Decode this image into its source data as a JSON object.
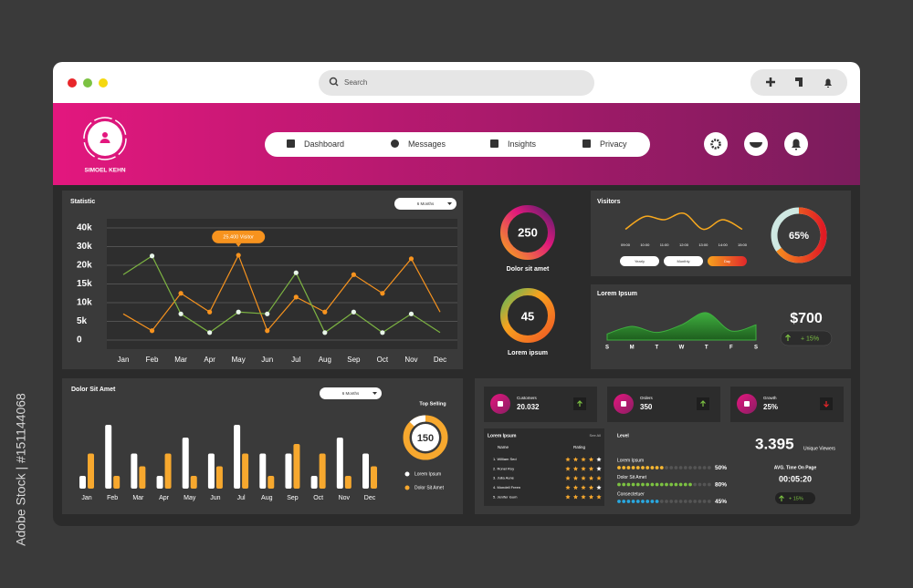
{
  "watermark": "Adobe Stock | #151144068",
  "browser": {
    "search": "Search"
  },
  "header": {
    "user": "SIMOEL KEHN",
    "nav": [
      "Dashboard",
      "Messages",
      "Insights",
      "Privacy"
    ]
  },
  "statistic": {
    "title": "Statistic",
    "filter": "6 Months",
    "tooltip": "25.400 Visitor",
    "categories": [
      "Jan",
      "Feb",
      "Mar",
      "Apr",
      "May",
      "Jun",
      "Jul",
      "Aug",
      "Sep",
      "Oct",
      "Nov",
      "Dec"
    ],
    "ylim": [
      0,
      40000
    ],
    "yticks": [
      {
        "value": 0,
        "label": "0"
      },
      {
        "value": 5000,
        "label": "5k"
      },
      {
        "value": 10000,
        "label": "10k"
      },
      {
        "value": 15000,
        "label": "15k"
      },
      {
        "value": 20000,
        "label": "20k"
      },
      {
        "value": 30000,
        "label": "30k"
      },
      {
        "value": 40000,
        "label": "40k"
      }
    ],
    "grid": true,
    "series": [
      {
        "color": "#f7931e",
        "marker_color": "#f7931e",
        "values": [
          7000,
          2500,
          12500,
          7500,
          25400,
          2500,
          11500,
          7500,
          17500,
          12500,
          23500,
          7500
        ]
      },
      {
        "color": "#7cb342",
        "marker_color": "#e8f5e9",
        "values": [
          17500,
          25000,
          7000,
          2000,
          7500,
          7000,
          18000,
          2000,
          7500,
          2000,
          7000,
          2000
        ]
      }
    ]
  },
  "donuts": [
    {
      "value": "250",
      "label": "Dolor sit amet"
    },
    {
      "value": "45",
      "label": "Lorem ipsum"
    }
  ],
  "visitors": {
    "title": "Visitors",
    "categories": [
      "09:00",
      "10:00",
      "11:00",
      "12:00",
      "13:00",
      "14:00",
      "15:00"
    ],
    "values": [
      30,
      70,
      60,
      80,
      30,
      60,
      30
    ],
    "color": "#f7a81e",
    "buttons": [
      "Yearly",
      "Monthly",
      "Day"
    ],
    "gauge": {
      "value": 65,
      "value_label": "65%"
    }
  },
  "lorem_panel": {
    "title": "Lorem Ipsum",
    "categories": [
      "S",
      "M",
      "T",
      "W",
      "T",
      "F",
      "S"
    ],
    "values": [
      20,
      45,
      25,
      50,
      90,
      30,
      50
    ],
    "color": "#3fae3f",
    "amount": "$700",
    "change": "+ 15%"
  },
  "bars": {
    "title": "Dolor Sit Amet",
    "filter": "6 Months",
    "categories": [
      "Jan",
      "Feb",
      "Mar",
      "Apr",
      "May",
      "Jun",
      "Jul",
      "Aug",
      "Sep",
      "Oct",
      "Nov",
      "Dec"
    ],
    "series": [
      {
        "name": "Lorem Ipsum",
        "color": "#ffffff",
        "values": [
          20,
          100,
          55,
          20,
          80,
          55,
          100,
          55,
          55,
          20,
          80,
          55
        ]
      },
      {
        "name": "Dolor Sit Amet",
        "color": "#f7a82e",
        "values": [
          55,
          20,
          35,
          55,
          20,
          35,
          55,
          20,
          70,
          55,
          20,
          35
        ]
      }
    ],
    "top_selling": {
      "title": "Top Selling",
      "value": "150"
    }
  },
  "cards": [
    {
      "label": "Customers",
      "value": "20.032"
    },
    {
      "label": "Orders",
      "value": "350"
    },
    {
      "label": "Growth",
      "value": "25%"
    }
  ],
  "table": {
    "title": "Lorem Ipsum",
    "link": "See All",
    "columns": [
      "Name",
      "Rating"
    ],
    "rows": [
      {
        "name": "1.   William Sed",
        "rating": 4
      },
      {
        "name": "2.   Ronel Roy",
        "rating": 4
      },
      {
        "name": "3.   Julia Aune",
        "rating": 5
      },
      {
        "name": "4.   Mondell Freen",
        "rating": 4
      },
      {
        "name": "5.   Jenifer Ioum",
        "rating": 5
      }
    ]
  },
  "level": {
    "title": "Level",
    "items": [
      {
        "name": "Lorem Ipsum",
        "value": 50,
        "value_label": "50%",
        "color": "#f7b731"
      },
      {
        "name": "Dolor Sit Amet",
        "value": 80,
        "value_label": "80%",
        "color": "#7cc242"
      },
      {
        "name": "Consectetuer",
        "value": 45,
        "value_label": "45%",
        "color": "#29a8e0"
      }
    ]
  },
  "summary": {
    "viewers": "3.395",
    "viewers_label": "Unique Viewers",
    "time_label": "AVG. Time On Page",
    "time": "00:05:20",
    "change": "+ 15%"
  }
}
